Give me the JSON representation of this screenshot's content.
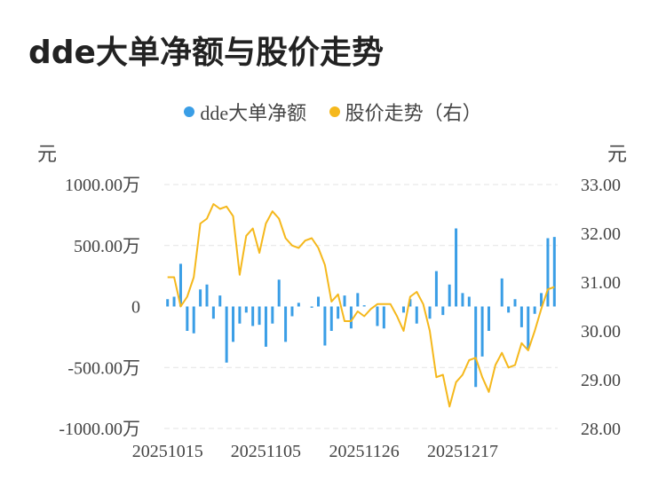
{
  "title": "dde大单净额与股价走势",
  "legend": [
    {
      "label": "dde大单净额",
      "color": "#3a9ee6"
    },
    {
      "label": "股价走势（右）",
      "color": "#f5b81c"
    }
  ],
  "axis_units": {
    "left": "元",
    "right": "元"
  },
  "colors": {
    "bar": "#3a9ee6",
    "line": "#f5b81c",
    "grid": "#e3e3e3"
  },
  "chart_data": {
    "type": "bar+line",
    "x_ticks": [
      "20251015",
      "20251105",
      "20251126",
      "20251217"
    ],
    "left_axis": {
      "min": -1000,
      "max": 1000,
      "ticks": [
        1000,
        500,
        0,
        -500,
        -1000
      ],
      "tick_labels": [
        "1000.00万",
        "500.00万",
        "0",
        "-500.00万",
        "-1000.00万"
      ]
    },
    "right_axis": {
      "min": 28,
      "max": 33,
      "ticks": [
        33,
        32,
        31,
        30,
        29,
        28
      ],
      "tick_labels": [
        "33.00",
        "32.00",
        "31.00",
        "30.00",
        "29.00",
        "28.00"
      ]
    },
    "series": [
      {
        "name": "dde大单净额",
        "kind": "bar",
        "values": [
          60,
          80,
          350,
          -200,
          -220,
          140,
          180,
          -100,
          90,
          -460,
          -290,
          -140,
          -50,
          -160,
          -150,
          -330,
          -140,
          220,
          -290,
          -80,
          30,
          0,
          -10,
          80,
          -320,
          -200,
          -100,
          90,
          -180,
          110,
          10,
          0,
          -160,
          -180,
          0,
          0,
          -50,
          60,
          -140,
          0,
          -100,
          290,
          -70,
          180,
          640,
          110,
          80,
          -660,
          -410,
          -200,
          0,
          230,
          -50,
          60,
          -170,
          -350,
          -60,
          110,
          560,
          570
        ]
      },
      {
        "name": "股价走势（右）",
        "kind": "line",
        "values": [
          31.1,
          31.1,
          30.5,
          30.7,
          31.1,
          32.2,
          32.3,
          32.6,
          32.5,
          32.55,
          32.35,
          31.15,
          31.95,
          32.1,
          31.6,
          32.2,
          32.45,
          32.3,
          31.9,
          31.75,
          31.7,
          31.85,
          31.9,
          31.7,
          31.35,
          30.6,
          30.75,
          30.2,
          30.2,
          30.4,
          30.3,
          30.45,
          30.55,
          30.55,
          30.55,
          30.3,
          30.0,
          30.7,
          30.8,
          30.55,
          30.0,
          29.05,
          29.1,
          28.45,
          28.95,
          29.1,
          29.4,
          29.45,
          29.05,
          28.75,
          29.3,
          29.55,
          29.25,
          29.3,
          29.75,
          29.6,
          30.0,
          30.45,
          30.85,
          30.9
        ]
      }
    ]
  }
}
